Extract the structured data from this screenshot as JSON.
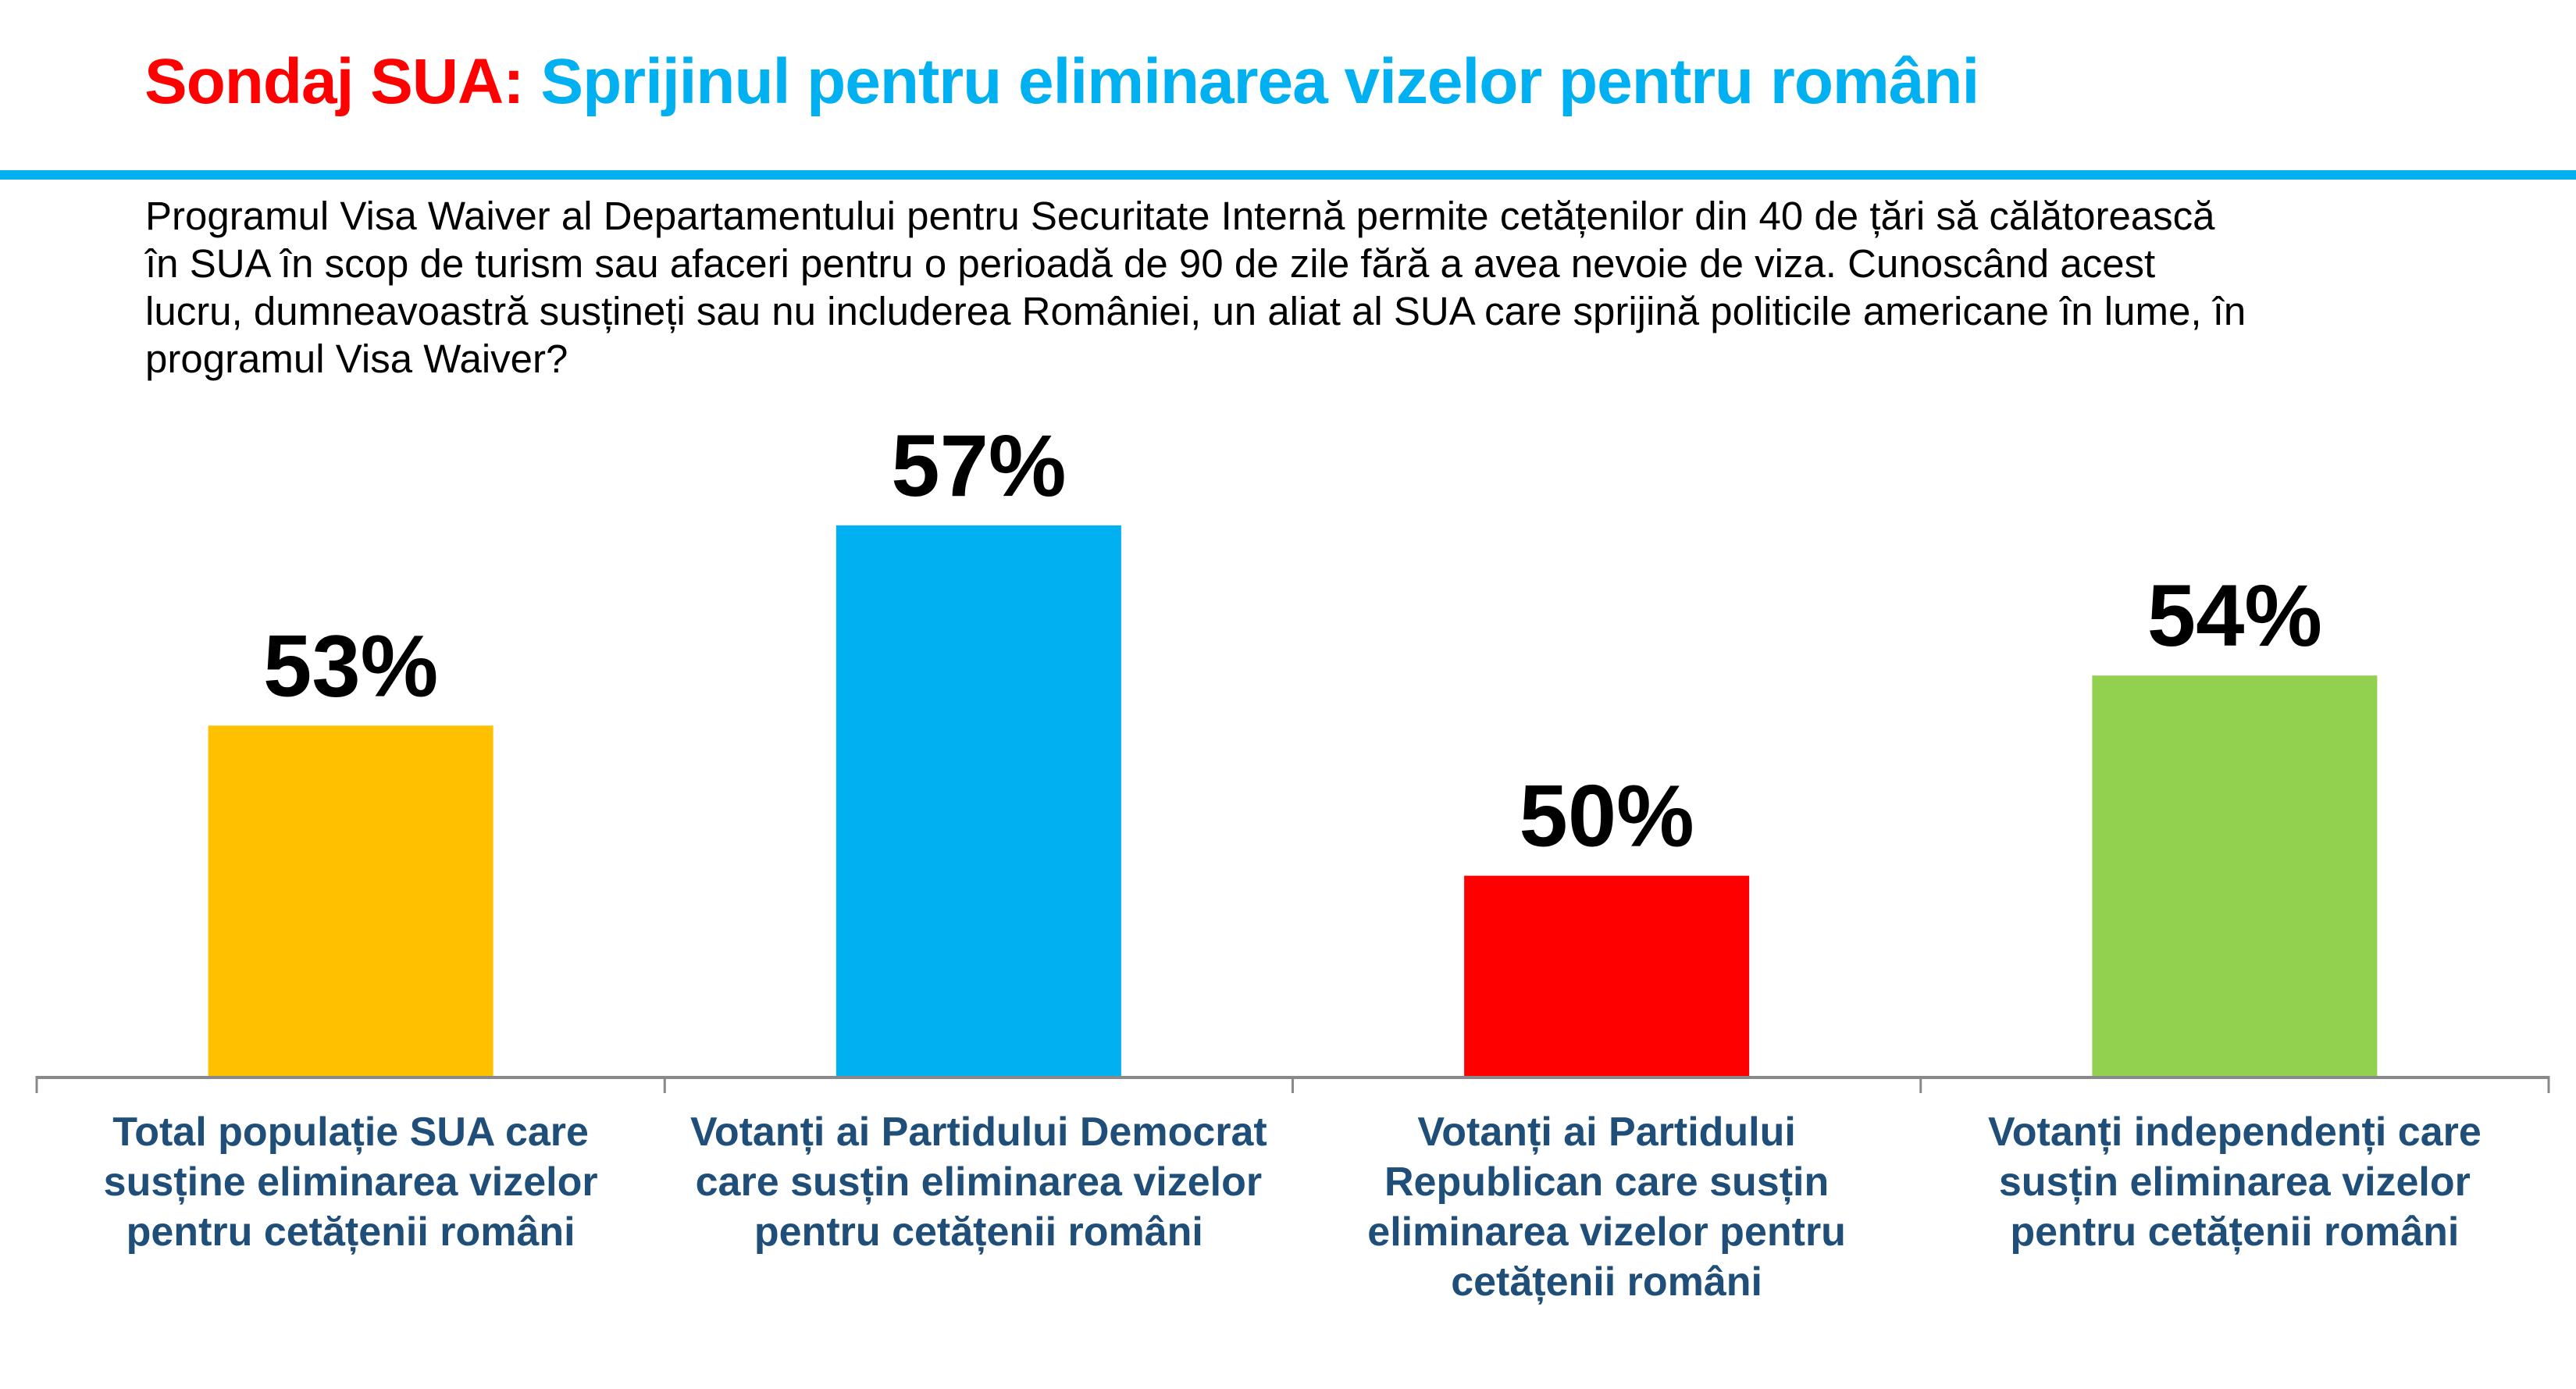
{
  "header": {
    "title_prefix": "Sondaj SUA:",
    "title_main": "Sprijinul pentru eliminarea vizelor pentru români"
  },
  "question_lines": [
    "Programul Visa Waiver al Departamentului pentru Securitate Internă permite cetățenilor din 40 de țări să călătorească",
    "în SUA în scop de turism sau afaceri pentru o perioadă de 90 de zile fără a avea nevoie de viza. Cunoscând acest",
    "lucru, dumneavoastră susțineți sau nu includerea României, un aliat al SUA care sprijină politicile americane în lume, în",
    "programul Visa Waiver?"
  ],
  "chart_data": {
    "type": "bar",
    "title": "Sondaj SUA: Sprijinul pentru eliminarea vizelor pentru români",
    "xlabel": "",
    "ylabel": "",
    "ylim": [
      46,
      60
    ],
    "grid": false,
    "legend": "none",
    "categories": [
      [
        "Total populație SUA care",
        "susține eliminarea vizelor",
        "pentru cetățenii români"
      ],
      [
        "Votanți ai Partidului Democrat",
        "care susțin eliminarea vizelor",
        "pentru cetățenii români"
      ],
      [
        "Votanți ai Partidului",
        "Republican care susțin",
        "eliminarea vizelor pentru",
        "cetățenii români"
      ],
      [
        "Votanți independenți care",
        "susțin eliminarea vizelor",
        "pentru cetățenii români"
      ]
    ],
    "values": [
      53,
      57,
      50,
      54
    ],
    "value_labels": [
      "53%",
      "57%",
      "50%",
      "54%"
    ],
    "colors": [
      "#ffc000",
      "#00b0f0",
      "#ff0000",
      "#92d050"
    ]
  },
  "colors": {
    "title_prefix": "#ff0000",
    "title_main": "#00b0f0",
    "category_text": "#1f4e79",
    "axis": "#898989"
  }
}
